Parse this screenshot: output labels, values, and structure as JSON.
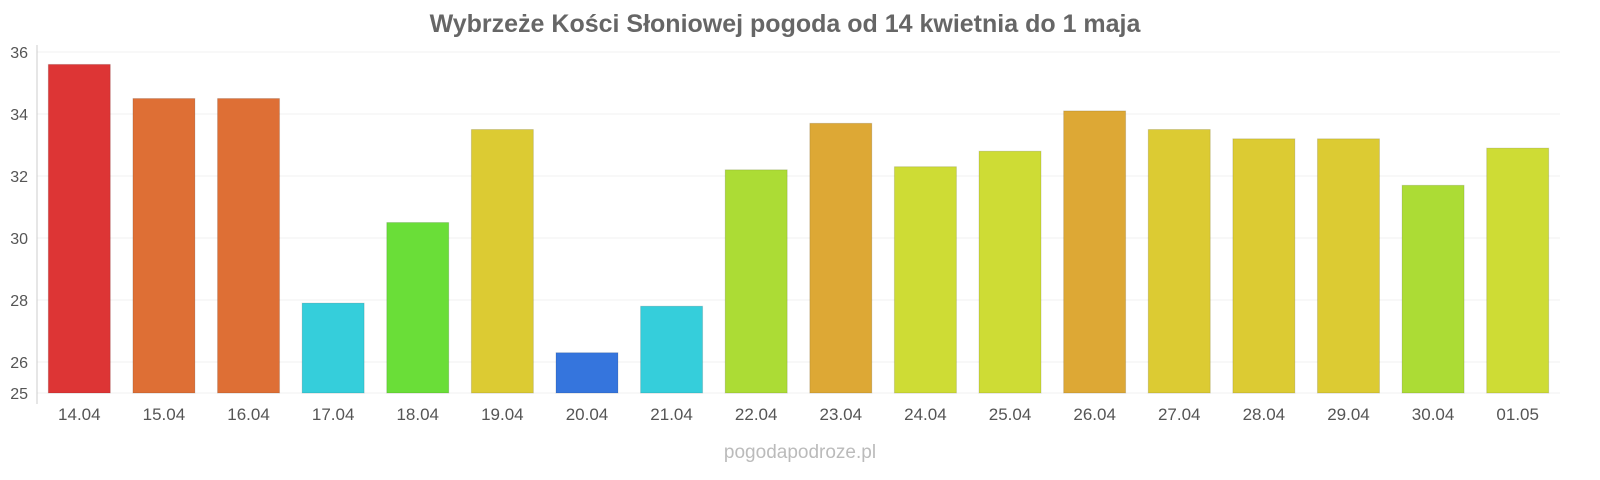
{
  "chart_data": {
    "type": "bar",
    "title": "Wybrzeże Kości Słoniowej pogoda od 14 kwietnia do 1 maja",
    "xlabel": "",
    "ylabel": "",
    "ylim": [
      25,
      36
    ],
    "yticks": [
      25,
      26,
      28,
      30,
      32,
      34,
      36
    ],
    "grid": true,
    "categories": [
      "14.04",
      "15.04",
      "16.04",
      "17.04",
      "18.04",
      "19.04",
      "20.04",
      "21.04",
      "22.04",
      "23.04",
      "24.04",
      "25.04",
      "26.04",
      "27.04",
      "28.04",
      "29.04",
      "30.04",
      "01.05"
    ],
    "values": [
      35.6,
      34.5,
      34.5,
      27.9,
      30.5,
      33.5,
      26.3,
      27.8,
      32.2,
      33.7,
      32.3,
      32.8,
      34.1,
      33.5,
      33.2,
      33.2,
      31.7,
      32.9
    ],
    "colors": [
      "#dd3535",
      "#de6f35",
      "#de6f35",
      "#35cedb",
      "#6ade38",
      "#dccb33",
      "#3575dd",
      "#35cedb",
      "#acdc35",
      "#dda835",
      "#cedc35",
      "#cedc35",
      "#dda835",
      "#dccb33",
      "#dccb33",
      "#dccb33",
      "#acdc35",
      "#cedc35"
    ]
  },
  "credit": "pogodapodroze.pl"
}
